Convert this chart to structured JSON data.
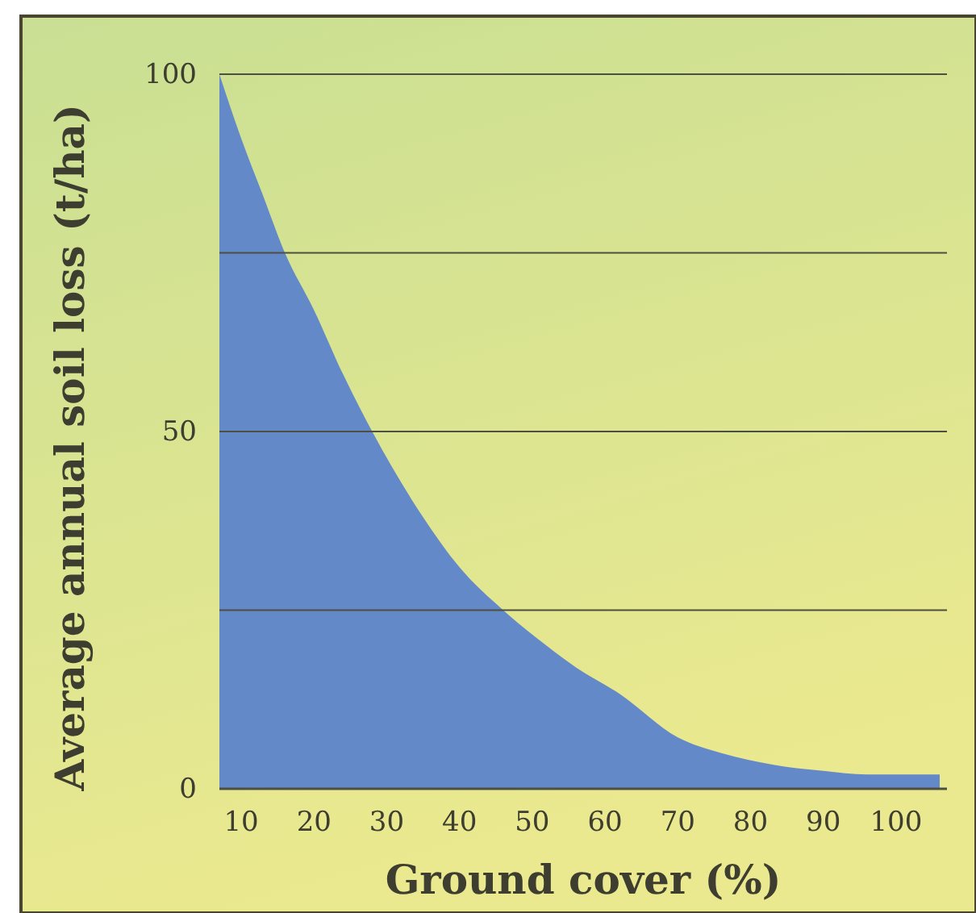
{
  "chart_data": {
    "type": "area",
    "xlabel": "Ground cover (%)",
    "ylabel": "Average annual soil loss (t/ha)",
    "x": [
      7,
      10,
      13,
      16,
      20,
      24,
      28,
      35,
      40,
      46,
      52,
      56,
      62,
      70,
      76,
      83,
      90,
      96,
      106
    ],
    "series": [
      {
        "color": "#6389c8",
        "values": [
          100,
          91,
          83,
          75,
          67,
          58,
          50,
          38,
          31,
          25,
          20,
          17,
          13.3,
          7.2,
          5,
          3.4,
          2.5,
          2,
          2
        ]
      }
    ],
    "xlim": [
      7,
      107
    ],
    "xticks": [
      10,
      20,
      30,
      40,
      50,
      60,
      70,
      80,
      90,
      100
    ],
    "ylim": [
      0,
      100
    ],
    "yticks": [
      0,
      {
        "value": 25,
        "label": null
      },
      50,
      {
        "value": 75,
        "label": null
      },
      100
    ],
    "grid": "y"
  }
}
